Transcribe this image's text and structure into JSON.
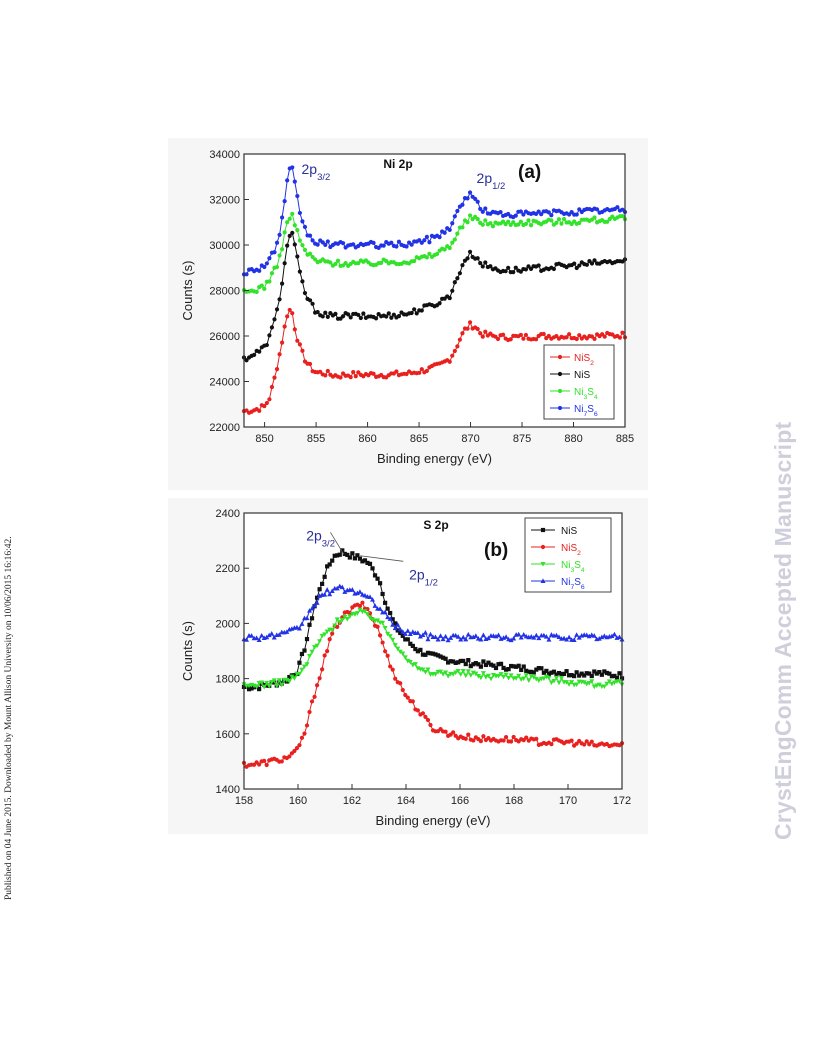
{
  "side_note": "Published on 04 June 2015. Downloaded by Mount Allison University on 10/06/2015 16:16:42.",
  "watermark": "CrystEngComm Accepted Manuscript",
  "chart_data": [
    {
      "type": "scatter",
      "panel_label": "(a)",
      "title": "Ni 2p",
      "xlabel": "Binding energy (eV)",
      "ylabel": "Counts (s)",
      "xlim": [
        848,
        885
      ],
      "ylim": [
        22000,
        34000
      ],
      "xticks": [
        850,
        855,
        860,
        865,
        870,
        875,
        880,
        885
      ],
      "yticks": [
        22000,
        24000,
        26000,
        28000,
        30000,
        32000,
        34000
      ],
      "annotations": [
        {
          "text": "2p",
          "sub": "3/2",
          "x": 853.0,
          "y": 33300,
          "color": "#2a2f9a"
        },
        {
          "text": "2p",
          "sub": "1/2",
          "x": 870.0,
          "y": 32900,
          "color": "#2a2f9a"
        }
      ],
      "legend": {
        "position": "bottom-right",
        "entries": [
          {
            "text": "NiS",
            "sub": "2",
            "series": 0
          },
          {
            "text": "NiS",
            "sub": "",
            "series": 1
          },
          {
            "text": "Ni",
            "sub": "3",
            "text2": "S",
            "sub2": "4",
            "series": 2
          },
          {
            "text": "Ni",
            "sub": "7",
            "text2": "S",
            "sub2": "6",
            "series": 3
          }
        ]
      },
      "series": [
        {
          "name": "NiS2",
          "color": "#e8201e",
          "marker": "circle",
          "x": [
            848,
            849,
            850,
            850.5,
            851,
            851.5,
            852,
            852.3,
            852.7,
            853,
            853.5,
            854,
            854.5,
            855,
            856,
            857,
            858,
            860,
            862,
            864,
            866,
            867,
            868,
            868.5,
            869,
            869.5,
            870,
            870.5,
            871,
            872,
            873,
            875,
            877,
            880,
            882,
            885
          ],
          "y": [
            22700,
            22750,
            22900,
            23300,
            24200,
            25300,
            26500,
            27200,
            27000,
            26200,
            25400,
            24900,
            24600,
            24400,
            24350,
            24250,
            24300,
            24300,
            24300,
            24350,
            24550,
            24700,
            25000,
            25400,
            25900,
            26300,
            26500,
            26400,
            26100,
            26000,
            25950,
            25950,
            26000,
            26000,
            26000,
            26050
          ]
        },
        {
          "name": "NiS",
          "color": "#111111",
          "marker": "circle",
          "x": [
            848,
            849,
            850,
            850.5,
            851,
            851.5,
            852,
            852.3,
            852.7,
            853,
            853.5,
            854,
            854.5,
            855,
            856,
            857,
            858,
            860,
            862,
            864,
            866,
            867,
            868,
            868.5,
            869,
            869.5,
            870,
            870.5,
            871,
            872,
            873,
            875,
            877,
            880,
            882,
            885
          ],
          "y": [
            25000,
            25200,
            25500,
            26000,
            26700,
            27800,
            29300,
            30400,
            30500,
            29800,
            28600,
            27800,
            27400,
            27100,
            26900,
            26850,
            26900,
            26850,
            26900,
            27000,
            27300,
            27500,
            27800,
            28300,
            28900,
            29400,
            29600,
            29500,
            29200,
            29000,
            28900,
            28900,
            29000,
            29100,
            29200,
            29300
          ]
        },
        {
          "name": "Ni3S4",
          "color": "#33e22a",
          "marker": "circle",
          "x": [
            848,
            849,
            850,
            850.5,
            851,
            851.5,
            852,
            852.3,
            852.7,
            853,
            853.5,
            854,
            854.5,
            855,
            856,
            857,
            858,
            860,
            862,
            864,
            866,
            867,
            868,
            868.5,
            869,
            869.5,
            870,
            870.5,
            871,
            872,
            873,
            875,
            877,
            880,
            882,
            885
          ],
          "y": [
            27900,
            28000,
            28200,
            28500,
            28900,
            29500,
            30600,
            31200,
            31300,
            30800,
            30100,
            29700,
            29500,
            29300,
            29250,
            29200,
            29200,
            29200,
            29250,
            29300,
            29500,
            29700,
            30000,
            30300,
            30700,
            31000,
            31200,
            31150,
            31000,
            30950,
            30950,
            31000,
            31000,
            31050,
            31100,
            31150
          ]
        },
        {
          "name": "Ni7S6",
          "color": "#2233e6",
          "marker": "circle",
          "x": [
            848,
            849,
            850,
            850.5,
            851,
            851.5,
            852,
            852.3,
            852.7,
            853,
            853.5,
            854,
            854.5,
            855,
            856,
            857,
            858,
            860,
            862,
            864,
            866,
            867,
            868,
            868.5,
            869,
            869.5,
            870,
            870.5,
            871,
            872,
            873,
            875,
            877,
            880,
            882,
            885
          ],
          "y": [
            28800,
            28900,
            29100,
            29400,
            29800,
            30500,
            32000,
            33200,
            33300,
            32500,
            31300,
            30600,
            30300,
            30100,
            30050,
            30000,
            30000,
            30000,
            30000,
            30050,
            30250,
            30450,
            30800,
            31200,
            31700,
            32100,
            32200,
            32000,
            31600,
            31400,
            31350,
            31350,
            31400,
            31450,
            31500,
            31550
          ]
        }
      ]
    },
    {
      "type": "scatter",
      "panel_label": "(b)",
      "title": "S 2p",
      "xlabel": "Binding energy (eV)",
      "ylabel": "Counts (s)",
      "xlim": [
        158,
        172
      ],
      "ylim": [
        1400,
        2400
      ],
      "xticks": [
        158,
        160,
        162,
        164,
        166,
        168,
        170,
        172
      ],
      "yticks": [
        1400,
        1600,
        1800,
        2000,
        2200,
        2400
      ],
      "annotations": [
        {
          "text": "2p",
          "sub": "3/2",
          "x": 160.6,
          "y": 2315,
          "color": "#2a2f9a"
        },
        {
          "text": "2p",
          "sub": "1/2",
          "x": 163.3,
          "y": 2195,
          "color": "#2a2f9a"
        }
      ],
      "legend": {
        "position": "top-right",
        "entries": [
          {
            "text": "NiS",
            "sub": "",
            "series": 0
          },
          {
            "text": "NiS",
            "sub": "2",
            "series": 1
          },
          {
            "text": "Ni",
            "sub": "3",
            "text2": "S",
            "sub2": "4",
            "series": 2
          },
          {
            "text": "Ni",
            "sub": "7",
            "text2": "S",
            "sub2": "6",
            "series": 3
          }
        ]
      },
      "series": [
        {
          "name": "NiS",
          "color": "#111111",
          "marker": "square",
          "x": [
            158,
            158.5,
            159,
            159.5,
            160,
            160.3,
            160.6,
            161,
            161.3,
            161.6,
            162,
            162.3,
            162.6,
            163,
            163.3,
            163.6,
            164,
            164.5,
            165,
            166,
            167,
            168,
            169,
            170,
            171,
            172
          ],
          "y": [
            1770,
            1770,
            1780,
            1790,
            1830,
            1930,
            2060,
            2180,
            2240,
            2260,
            2245,
            2235,
            2220,
            2160,
            2060,
            1990,
            1940,
            1900,
            1880,
            1860,
            1850,
            1840,
            1830,
            1820,
            1820,
            1810
          ]
        },
        {
          "name": "NiS2",
          "color": "#e8201e",
          "marker": "circle",
          "x": [
            158,
            158.5,
            159,
            159.5,
            160,
            160.3,
            160.6,
            161,
            161.3,
            161.6,
            162,
            162.3,
            162.6,
            163,
            163.3,
            163.6,
            164,
            164.5,
            165,
            166,
            167,
            168,
            169,
            170,
            171,
            172
          ],
          "y": [
            1490,
            1490,
            1500,
            1510,
            1540,
            1620,
            1740,
            1880,
            1970,
            2020,
            2050,
            2070,
            2050,
            1970,
            1880,
            1810,
            1740,
            1680,
            1620,
            1590,
            1580,
            1580,
            1570,
            1570,
            1560,
            1560
          ]
        },
        {
          "name": "Ni3S4",
          "color": "#33e22a",
          "marker": "triangle-down",
          "x": [
            158,
            158.5,
            159,
            159.5,
            160,
            160.3,
            160.6,
            161,
            161.3,
            161.6,
            162,
            162.3,
            162.6,
            163,
            163.3,
            163.6,
            164,
            164.5,
            165,
            166,
            167,
            168,
            169,
            170,
            171,
            172
          ],
          "y": [
            1770,
            1780,
            1780,
            1790,
            1810,
            1850,
            1910,
            1960,
            1990,
            2020,
            2030,
            2040,
            2030,
            2010,
            1970,
            1930,
            1880,
            1830,
            1820,
            1820,
            1810,
            1810,
            1800,
            1790,
            1780,
            1780
          ]
        },
        {
          "name": "Ni7S6",
          "color": "#2233e6",
          "marker": "triangle-up",
          "x": [
            158,
            158.5,
            159,
            159.5,
            160,
            160.3,
            160.6,
            161,
            161.3,
            161.6,
            162,
            162.3,
            162.6,
            163,
            163.3,
            163.6,
            164,
            164.5,
            165,
            166,
            167,
            168,
            169,
            170,
            171,
            172
          ],
          "y": [
            1950,
            1950,
            1955,
            1960,
            1980,
            2020,
            2070,
            2110,
            2120,
            2125,
            2120,
            2110,
            2090,
            2060,
            2020,
            1990,
            1970,
            1960,
            1950,
            1950,
            1950,
            1950,
            1950,
            1950,
            1950,
            1950
          ]
        }
      ]
    }
  ]
}
